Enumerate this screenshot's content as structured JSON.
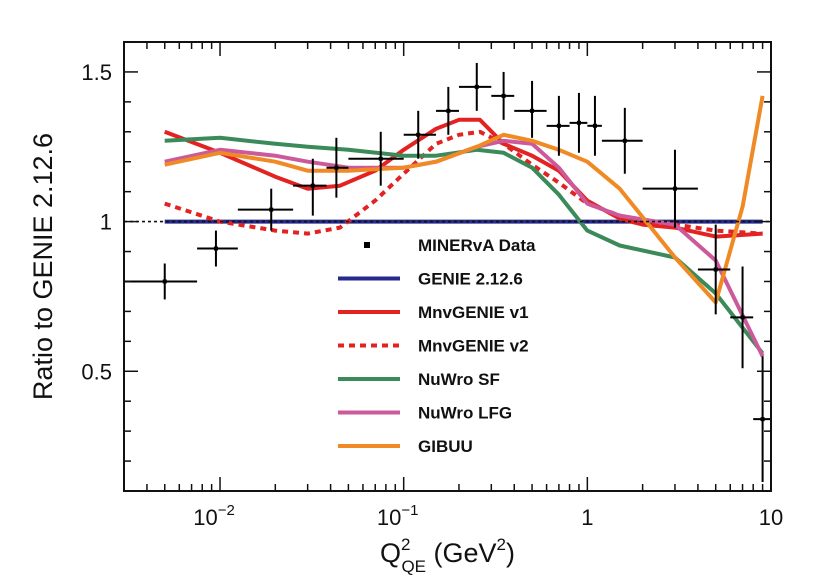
{
  "chart_data": {
    "type": "line",
    "xscale": "log",
    "xlim": [
      0.003,
      10
    ],
    "ylim": [
      0.1,
      1.6
    ],
    "ylabel": "Ratio to GENIE 2.12.6",
    "xlabel": {
      "main": "Q",
      "sup": "2",
      "sub": "QE",
      "unit_open": " (GeV",
      "unit_sup": "2",
      "unit_close": ")"
    },
    "y_ticks": [
      {
        "v": 0.5,
        "label": "0.5"
      },
      {
        "v": 1.0,
        "label": "1"
      },
      {
        "v": 1.5,
        "label": "1.5"
      }
    ],
    "x_ticks": [
      {
        "v": 0.01,
        "base": "10",
        "exp": "−2"
      },
      {
        "v": 0.1,
        "base": "10",
        "exp": "−1"
      },
      {
        "v": 1,
        "label": "1"
      },
      {
        "v": 10,
        "label": "10"
      }
    ],
    "reference_line": {
      "y": 1.0,
      "style": "dotted"
    },
    "data": {
      "name": "MINERvA Data",
      "color": "#000000",
      "points": [
        {
          "x": 0.005,
          "y": 0.8,
          "xlo": 0.003,
          "xhi": 0.0075,
          "ylo": 0.74,
          "yhi": 0.86
        },
        {
          "x": 0.0095,
          "y": 0.91,
          "xlo": 0.0075,
          "xhi": 0.0125,
          "ylo": 0.85,
          "yhi": 0.97
        },
        {
          "x": 0.019,
          "y": 1.04,
          "xlo": 0.0125,
          "xhi": 0.025,
          "ylo": 0.97,
          "yhi": 1.11
        },
        {
          "x": 0.032,
          "y": 1.12,
          "xlo": 0.025,
          "xhi": 0.038,
          "ylo": 1.02,
          "yhi": 1.21
        },
        {
          "x": 0.043,
          "y": 1.18,
          "xlo": 0.038,
          "xhi": 0.05,
          "ylo": 1.08,
          "yhi": 1.28
        },
        {
          "x": 0.075,
          "y": 1.21,
          "xlo": 0.05,
          "xhi": 0.1,
          "ylo": 1.12,
          "yhi": 1.3
        },
        {
          "x": 0.12,
          "y": 1.29,
          "xlo": 0.1,
          "xhi": 0.15,
          "ylo": 1.21,
          "yhi": 1.37
        },
        {
          "x": 0.175,
          "y": 1.37,
          "xlo": 0.15,
          "xhi": 0.2,
          "ylo": 1.29,
          "yhi": 1.45
        },
        {
          "x": 0.25,
          "y": 1.45,
          "xlo": 0.2,
          "xhi": 0.3,
          "ylo": 1.37,
          "yhi": 1.53
        },
        {
          "x": 0.35,
          "y": 1.42,
          "xlo": 0.3,
          "xhi": 0.4,
          "ylo": 1.34,
          "yhi": 1.5
        },
        {
          "x": 0.5,
          "y": 1.37,
          "xlo": 0.4,
          "xhi": 0.6,
          "ylo": 1.28,
          "yhi": 1.47
        },
        {
          "x": 0.7,
          "y": 1.32,
          "xlo": 0.6,
          "xhi": 0.8,
          "ylo": 1.22,
          "yhi": 1.42
        },
        {
          "x": 0.9,
          "y": 1.33,
          "xlo": 0.8,
          "xhi": 1.0,
          "ylo": 1.23,
          "yhi": 1.43
        },
        {
          "x": 1.1,
          "y": 1.32,
          "xlo": 1.0,
          "xhi": 1.2,
          "ylo": 1.22,
          "yhi": 1.42
        },
        {
          "x": 1.6,
          "y": 1.27,
          "xlo": 1.2,
          "xhi": 2.0,
          "ylo": 1.16,
          "yhi": 1.38
        },
        {
          "x": 3.0,
          "y": 1.11,
          "xlo": 2.0,
          "xhi": 4.0,
          "ylo": 0.98,
          "yhi": 1.24
        },
        {
          "x": 5.0,
          "y": 0.84,
          "xlo": 4.0,
          "xhi": 6.0,
          "ylo": 0.69,
          "yhi": 0.99
        },
        {
          "x": 7.0,
          "y": 0.68,
          "xlo": 6.0,
          "xhi": 8.0,
          "ylo": 0.51,
          "yhi": 0.85
        },
        {
          "x": 9.0,
          "y": 0.34,
          "xlo": 8.0,
          "xhi": 10.0,
          "ylo": 0.13,
          "yhi": 0.55
        }
      ]
    },
    "series": [
      {
        "name": "GENIE 2.12.6",
        "color": "#262a8c",
        "dash": "",
        "x": [
          0.005,
          9.0
        ],
        "y": [
          1.0,
          1.0
        ]
      },
      {
        "name": "MnvGENIE v1",
        "color": "#e32222",
        "dash": "",
        "x": [
          0.005,
          0.01,
          0.02,
          0.03,
          0.045,
          0.07,
          0.1,
          0.15,
          0.2,
          0.26,
          0.35,
          0.5,
          0.7,
          1.0,
          1.5,
          2.0,
          3.0,
          5.0,
          9.0
        ],
        "y": [
          1.3,
          1.23,
          1.15,
          1.11,
          1.12,
          1.17,
          1.24,
          1.31,
          1.34,
          1.34,
          1.26,
          1.22,
          1.17,
          1.07,
          1.01,
          0.99,
          0.98,
          0.95,
          0.96
        ]
      },
      {
        "name": "MnvGENIE v2",
        "color": "#e32222",
        "dash": "6,5",
        "x": [
          0.005,
          0.01,
          0.02,
          0.03,
          0.045,
          0.07,
          0.1,
          0.15,
          0.2,
          0.26,
          0.35,
          0.5,
          0.7,
          1.0,
          1.5,
          2.0,
          3.0,
          5.0,
          9.0
        ],
        "y": [
          1.06,
          1.0,
          0.97,
          0.96,
          0.98,
          1.07,
          1.16,
          1.26,
          1.29,
          1.3,
          1.26,
          1.19,
          1.13,
          1.06,
          1.02,
          1.0,
          0.99,
          0.97,
          0.96
        ]
      },
      {
        "name": "NuWro SF",
        "color": "#3a8a5a",
        "dash": "",
        "x": [
          0.005,
          0.01,
          0.02,
          0.03,
          0.05,
          0.1,
          0.15,
          0.25,
          0.35,
          0.5,
          0.7,
          1.0,
          1.5,
          3.0,
          5.0,
          9.0
        ],
        "y": [
          1.27,
          1.28,
          1.26,
          1.25,
          1.24,
          1.22,
          1.22,
          1.24,
          1.23,
          1.18,
          1.09,
          0.97,
          0.92,
          0.88,
          0.76,
          0.56
        ]
      },
      {
        "name": "NuWro LFG",
        "color": "#cc5a9a",
        "dash": "",
        "x": [
          0.005,
          0.01,
          0.02,
          0.03,
          0.05,
          0.1,
          0.15,
          0.25,
          0.35,
          0.5,
          0.7,
          1.0,
          1.5,
          3.0,
          5.0,
          9.0
        ],
        "y": [
          1.2,
          1.24,
          1.22,
          1.2,
          1.18,
          1.18,
          1.2,
          1.25,
          1.27,
          1.26,
          1.18,
          1.06,
          1.02,
          0.99,
          0.87,
          0.55
        ]
      },
      {
        "name": "GIBUU",
        "color": "#f08a24",
        "dash": "",
        "x": [
          0.005,
          0.01,
          0.02,
          0.03,
          0.05,
          0.1,
          0.15,
          0.25,
          0.35,
          0.5,
          0.7,
          1.0,
          1.5,
          3.0,
          5.0,
          7.0,
          9.0
        ],
        "y": [
          1.19,
          1.23,
          1.2,
          1.17,
          1.17,
          1.18,
          1.2,
          1.25,
          1.29,
          1.27,
          1.24,
          1.2,
          1.11,
          0.88,
          0.73,
          1.05,
          1.42
        ]
      }
    ],
    "legend": {
      "position": "center",
      "entries": [
        "MINERvA Data",
        "GENIE 2.12.6",
        "MnvGENIE v1",
        "MnvGENIE v2",
        "NuWro SF",
        "NuWro LFG",
        "GIBUU"
      ]
    }
  }
}
